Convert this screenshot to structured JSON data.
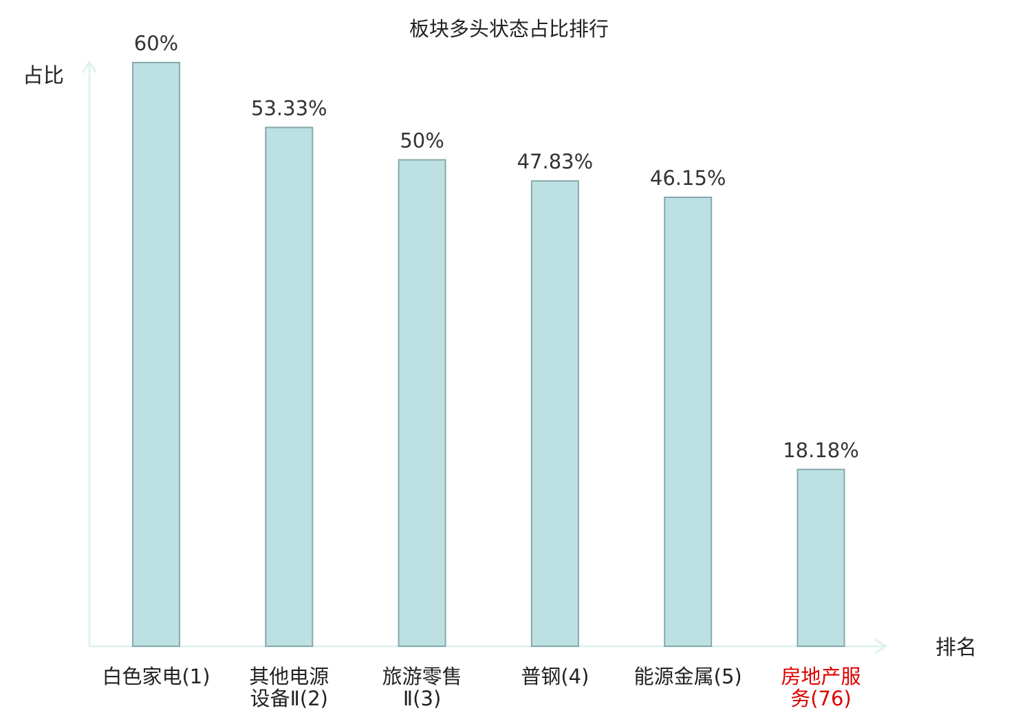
{
  "chart_data": {
    "type": "bar",
    "title": "板块多头状态占比排行",
    "ylabel": "占比",
    "xlabel": "排名",
    "ylim": [
      0,
      60
    ],
    "categories": [
      [
        "白色家电(1)"
      ],
      [
        "其他电源",
        "设备Ⅱ(2)"
      ],
      [
        "旅游零售",
        "Ⅱ(3)"
      ],
      [
        "普钢(4)"
      ],
      [
        "能源金属(5)"
      ],
      [
        "房地产服",
        "务(76)"
      ]
    ],
    "values": [
      60,
      53.33,
      50,
      47.83,
      46.15,
      18.18
    ],
    "value_labels": [
      "60%",
      "53.33%",
      "50%",
      "47.83%",
      "46.15%",
      "18.18%"
    ],
    "highlight_index": 5,
    "colors": {
      "bar_fill": "#bde0e3",
      "bar_stroke": "#86a8ab",
      "axis": "#def2ef",
      "text": "#222222",
      "value_text": "#333333",
      "highlight_text": "#dd0000"
    }
  }
}
